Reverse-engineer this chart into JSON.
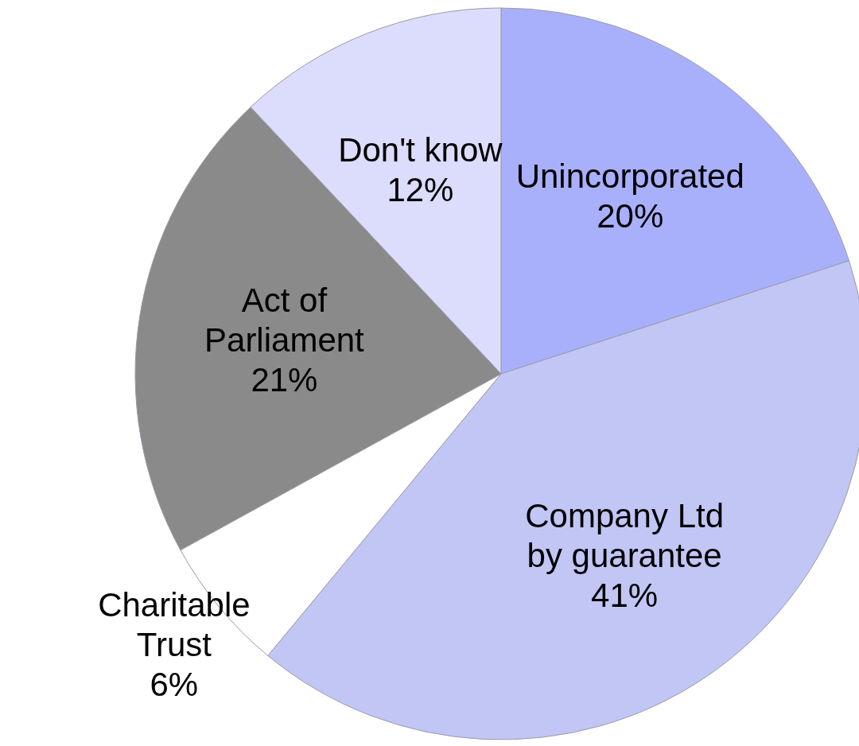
{
  "chart_data": {
    "type": "pie",
    "categories": [
      "Unincorporated",
      "Company Ltd by guarantee",
      "Charitable Trust",
      "Act of Parliament",
      "Don't know"
    ],
    "values": [
      20,
      41,
      6,
      21,
      12
    ],
    "value_labels": [
      "20%",
      "41%",
      "6%",
      "21%",
      "12%"
    ],
    "colors": [
      "#a9b0fb",
      "#c2c6f5",
      "#ffffff",
      "#8a8a8a",
      "#dcdcfc"
    ]
  }
}
